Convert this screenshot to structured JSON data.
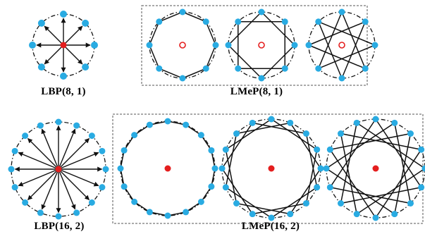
{
  "captions": {
    "lbp_8_1": "LBP(8, 1)",
    "lmep_8_1": "LMeP(8, 1)",
    "lbp_16_2": "LBP(16, 2)",
    "lmep_16_2": "LMeP(16, 2)"
  },
  "colors": {
    "neighbor": "#29abe2",
    "center": "#e41e1e",
    "line": "#111111",
    "dashed": "#555555"
  },
  "diagrams": [
    {
      "id": "lbp-8-1",
      "type": "lbp",
      "neighbors": 8
    },
    {
      "id": "lmep-8-1-step1",
      "type": "lmep",
      "neighbors": 8,
      "step": 1,
      "center": "hollow"
    },
    {
      "id": "lmep-8-1-step2",
      "type": "lmep",
      "neighbors": 8,
      "step": 2,
      "center": "hollow"
    },
    {
      "id": "lmep-8-1-step3",
      "type": "lmep",
      "neighbors": 8,
      "step": 3,
      "center": "hollow"
    },
    {
      "id": "lbp-16-2",
      "type": "lbp",
      "neighbors": 16
    },
    {
      "id": "lmep-16-2-step1",
      "type": "lmep",
      "neighbors": 16,
      "step": 1,
      "center": "filled"
    },
    {
      "id": "lmep-16-2-step3",
      "type": "lmep",
      "neighbors": 16,
      "step": 3,
      "center": "filled"
    },
    {
      "id": "lmep-16-2-step5",
      "type": "lmep",
      "neighbors": 16,
      "step": 5,
      "center": "filled"
    }
  ]
}
